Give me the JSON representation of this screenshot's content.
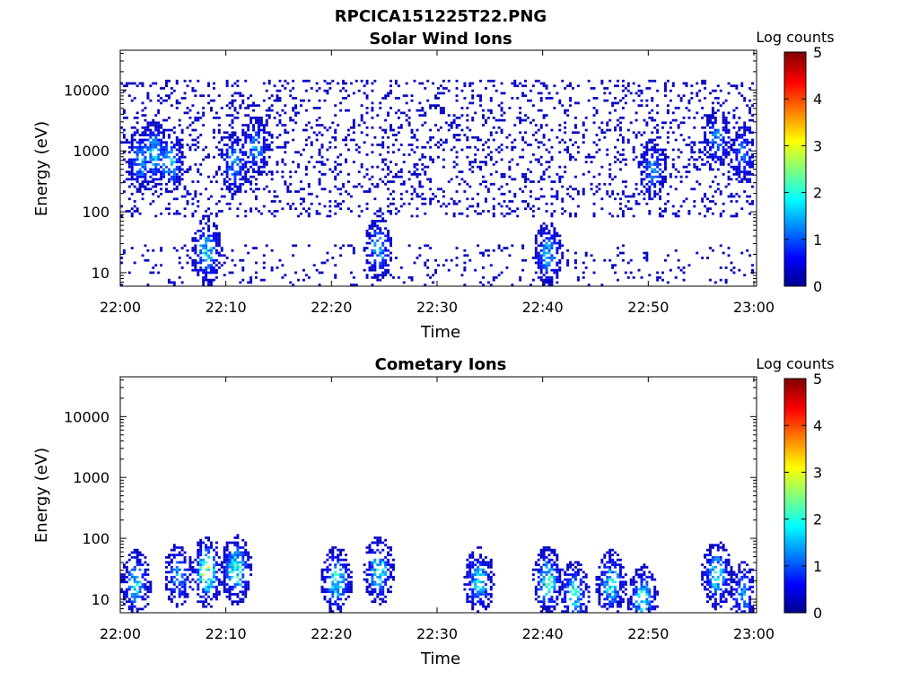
{
  "figure": {
    "title": "RPCICA151225T22.PNG"
  },
  "chart_data": [
    {
      "type": "heatmap",
      "title": "Solar Wind Ions",
      "xlabel": "Time",
      "ylabel": "Energy (eV)",
      "x_ticks": [
        "22:00",
        "22:10",
        "22:20",
        "22:30",
        "22:40",
        "22:50",
        "23:00"
      ],
      "y_ticks": [
        "10",
        "100",
        "1000",
        "10000"
      ],
      "y_scale": "log",
      "ylim": [
        6,
        45000
      ],
      "xlim": [
        "22:00",
        "23:00"
      ],
      "colorbar": {
        "label": "Log counts",
        "ticks": [
          "0",
          "1",
          "2",
          "3",
          "4",
          "5"
        ],
        "range": [
          0,
          5
        ],
        "colormap": "jet"
      },
      "clusters": [
        {
          "t": 2.0,
          "e": 700,
          "v": 1.6
        },
        {
          "t": 3.2,
          "e": 900,
          "v": 1.8
        },
        {
          "t": 4.7,
          "e": 650,
          "v": 1.7
        },
        {
          "t": 8.2,
          "e": 22,
          "v": 2.0
        },
        {
          "t": 10.8,
          "e": 650,
          "v": 1.5
        },
        {
          "t": 12.8,
          "e": 1100,
          "v": 1.5
        },
        {
          "t": 24.5,
          "e": 25,
          "v": 1.6
        },
        {
          "t": 40.5,
          "e": 20,
          "v": 1.6
        },
        {
          "t": 50.5,
          "e": 500,
          "v": 1.3
        },
        {
          "t": 56.5,
          "e": 1500,
          "v": 1.4
        },
        {
          "t": 59.0,
          "e": 900,
          "v": 1.2
        }
      ]
    },
    {
      "type": "heatmap",
      "title": "Cometary Ions",
      "xlabel": "Time",
      "ylabel": "Energy (eV)",
      "x_ticks": [
        "22:00",
        "22:10",
        "22:20",
        "22:30",
        "22:40",
        "22:50",
        "23:00"
      ],
      "y_ticks": [
        "10",
        "100",
        "1000",
        "10000"
      ],
      "y_scale": "log",
      "ylim": [
        6,
        45000
      ],
      "xlim": [
        "22:00",
        "23:00"
      ],
      "colorbar": {
        "label": "Log counts",
        "ticks": [
          "0",
          "1",
          "2",
          "3",
          "4",
          "5"
        ],
        "range": [
          0,
          5
        ],
        "colormap": "jet"
      },
      "clusters": [
        {
          "t": 1.5,
          "e": 18,
          "v": 1.9
        },
        {
          "t": 5.5,
          "e": 25,
          "v": 1.5
        },
        {
          "t": 8.2,
          "e": 28,
          "v": 2.9
        },
        {
          "t": 11.0,
          "e": 30,
          "v": 2.4
        },
        {
          "t": 20.5,
          "e": 20,
          "v": 2.2
        },
        {
          "t": 24.5,
          "e": 30,
          "v": 2.2
        },
        {
          "t": 34.0,
          "e": 20,
          "v": 1.9
        },
        {
          "t": 40.5,
          "e": 20,
          "v": 2.2
        },
        {
          "t": 43.0,
          "e": 12,
          "v": 2.0
        },
        {
          "t": 46.5,
          "e": 18,
          "v": 2.0
        },
        {
          "t": 49.5,
          "e": 10,
          "v": 2.1
        },
        {
          "t": 56.5,
          "e": 25,
          "v": 2.0
        },
        {
          "t": 59.0,
          "e": 12,
          "v": 1.5
        }
      ]
    }
  ]
}
